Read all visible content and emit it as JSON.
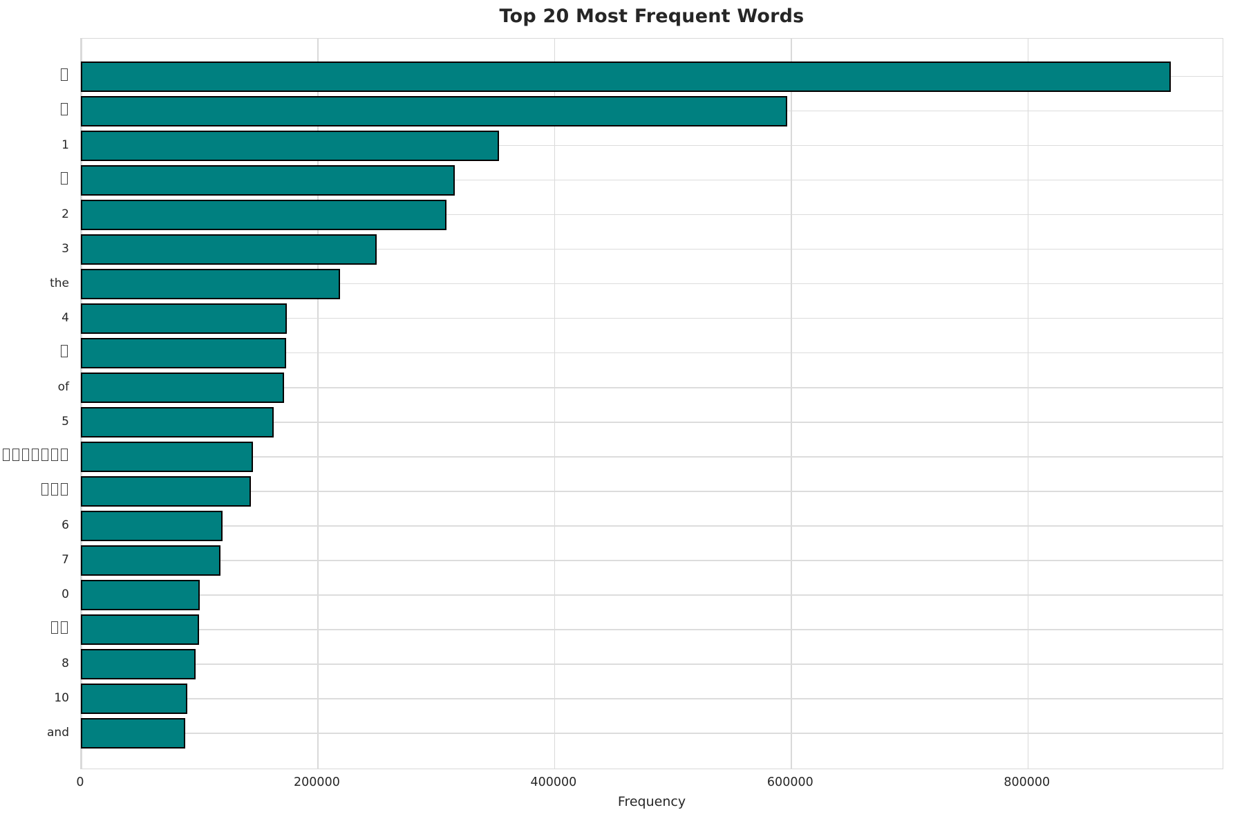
{
  "title": "Top 20 Most Frequent Words",
  "chart_data": {
    "type": "bar",
    "orientation": "horizontal",
    "title": "Top 20 Most Frequent Words",
    "xlabel": "Frequency",
    "ylabel": "",
    "categories": [
      "□",
      "□",
      "1",
      "□",
      "2",
      "3",
      "the",
      "4",
      "□",
      "of",
      "5",
      "□□□□□□□",
      "□□□",
      "6",
      "7",
      "0",
      "□□",
      "8",
      "10",
      "and"
    ],
    "values": [
      920000,
      596000,
      352000,
      315000,
      307500,
      249000,
      218000,
      173000,
      172500,
      170500,
      161500,
      144500,
      142500,
      118500,
      117000,
      99500,
      98500,
      95500,
      89000,
      87000
    ],
    "xlim": [
      0,
      966000
    ],
    "x_ticks": [
      0,
      200000,
      400000,
      600000,
      800000
    ],
    "x_tick_labels": [
      "0",
      "200000",
      "400000",
      "600000",
      "800000"
    ],
    "grid": true,
    "legend": false,
    "colors": {
      "bar_fill": "#008080",
      "bar_edge": "#000000",
      "grid": "#d9d9d9",
      "text": "#262626",
      "background": "#ffffff"
    }
  }
}
